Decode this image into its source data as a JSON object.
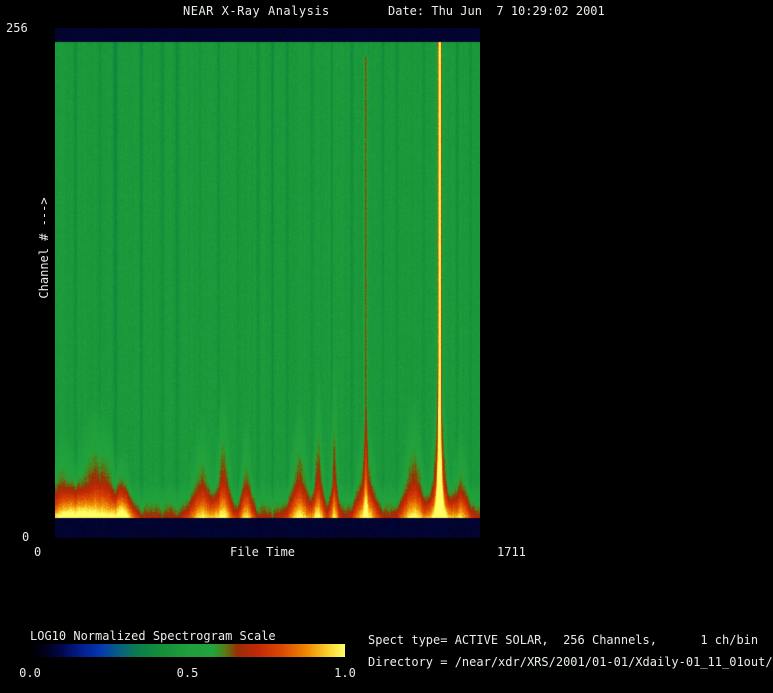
{
  "header": {
    "title": "NEAR X-Ray Analysis",
    "date_label": "Date: Thu Jun  7 10:29:02 2001"
  },
  "axes": {
    "y_max": "256",
    "y_min": "0",
    "y_label": "Channel # --->",
    "x_min": "0",
    "x_max": "1711",
    "x_label": "File Time"
  },
  "colorbar": {
    "label": "LOG10 Normalized Spectrogram Scale",
    "ticks": [
      "0.0",
      "0.5",
      "1.0"
    ]
  },
  "footer": {
    "line1": "Spect type= ACTIVE SOLAR,  256 Channels,      1 ch/bin",
    "line2": "Directory = /near/xdr/XRS/2001/01-01/Xdaily-01_11_01out/"
  },
  "chart_data": {
    "type": "heatmap",
    "subtype": "spectrogram",
    "title": "NEAR X-Ray Analysis",
    "xlabel": "File Time",
    "ylabel": "Channel #",
    "x_range": [
      0,
      1711
    ],
    "y_range": [
      0,
      256
    ],
    "scale_label": "LOG10 Normalized Spectrogram Scale",
    "scale_range": [
      0.0,
      1.0
    ],
    "legend_position": "bottom-left",
    "grid": false,
    "colormap": [
      [
        0.0,
        "#000002"
      ],
      [
        0.05,
        "#02021e"
      ],
      [
        0.1,
        "#03084e"
      ],
      [
        0.16,
        "#041f8e"
      ],
      [
        0.22,
        "#0536b0"
      ],
      [
        0.28,
        "#075f86"
      ],
      [
        0.34,
        "#0c7e4e"
      ],
      [
        0.42,
        "#169038"
      ],
      [
        0.5,
        "#1f9f3e"
      ],
      [
        0.58,
        "#23a43c"
      ],
      [
        0.62,
        "#577c14"
      ],
      [
        0.66,
        "#9c2e06"
      ],
      [
        0.72,
        "#c22806"
      ],
      [
        0.8,
        "#db4a04"
      ],
      [
        0.88,
        "#ef8903"
      ],
      [
        0.95,
        "#fbd530"
      ],
      [
        1.0,
        "#ffff66"
      ]
    ],
    "background_level": 0.47,
    "band_level": 0.07,
    "pixel_noise": 0.05,
    "column_noise": 0.03,
    "bands": {
      "top_end": 0.0275,
      "bottom_start": 0.9608
    },
    "flares": [
      {
        "x": 0.5,
        "w": 10.0,
        "h": 0.08,
        "amp": 0.22
      },
      {
        "x": 0.02,
        "w": 0.05,
        "h": 0.2,
        "amp": 0.3
      },
      {
        "x": 0.1,
        "w": 0.065,
        "h": 0.26,
        "amp": 0.37
      },
      {
        "x": 0.16,
        "w": 0.025,
        "h": 0.16,
        "amp": 0.26
      },
      {
        "x": 0.345,
        "w": 0.03,
        "h": 0.24,
        "amp": 0.31
      },
      {
        "x": 0.395,
        "w": 0.022,
        "h": 0.3,
        "amp": 0.35
      },
      {
        "x": 0.45,
        "w": 0.018,
        "h": 0.24,
        "amp": 0.3
      },
      {
        "x": 0.575,
        "w": 0.028,
        "h": 0.26,
        "amp": 0.33
      },
      {
        "x": 0.62,
        "w": 0.016,
        "h": 0.32,
        "amp": 0.33
      },
      {
        "x": 0.657,
        "w": 0.011,
        "h": 0.38,
        "amp": 0.31
      },
      {
        "x": 0.732,
        "w": 0.028,
        "h": 0.26,
        "amp": 0.34
      },
      {
        "x": 0.845,
        "w": 0.032,
        "h": 0.27,
        "amp": 0.34
      },
      {
        "x": 0.906,
        "w": 0.024,
        "h": 0.34,
        "amp": 0.42
      },
      {
        "x": 0.906,
        "w": 0.009,
        "h": 0.28,
        "amp": 0.5
      },
      {
        "x": 0.955,
        "w": 0.025,
        "h": 0.2,
        "amp": 0.28
      }
    ],
    "lines": [
      {
        "x": 0.732,
        "w": 0.0045,
        "amp": 0.165,
        "h": 0.97
      },
      {
        "x": 0.906,
        "w": 0.0035,
        "amp": 0.62,
        "h": 1.0
      },
      {
        "x": 0.906,
        "w": 0.008,
        "amp": 0.08,
        "h": 1.0
      }
    ],
    "dark_streaks": [
      {
        "x": 0.047,
        "w": 0.004,
        "s": 0.07
      },
      {
        "x": 0.106,
        "w": 0.004,
        "s": 0.05
      },
      {
        "x": 0.141,
        "w": 0.005,
        "s": 0.11
      },
      {
        "x": 0.202,
        "w": 0.004,
        "s": 0.09
      },
      {
        "x": 0.252,
        "w": 0.004,
        "s": 0.07
      },
      {
        "x": 0.287,
        "w": 0.004,
        "s": 0.08
      },
      {
        "x": 0.341,
        "w": 0.003,
        "s": 0.05
      },
      {
        "x": 0.384,
        "w": 0.004,
        "s": 0.06
      },
      {
        "x": 0.431,
        "w": 0.003,
        "s": 0.05
      },
      {
        "x": 0.478,
        "w": 0.004,
        "s": 0.06
      },
      {
        "x": 0.511,
        "w": 0.004,
        "s": 0.08
      },
      {
        "x": 0.546,
        "w": 0.004,
        "s": 0.07
      },
      {
        "x": 0.605,
        "w": 0.004,
        "s": 0.06
      },
      {
        "x": 0.652,
        "w": 0.003,
        "s": 0.05
      },
      {
        "x": 0.699,
        "w": 0.004,
        "s": 0.07
      },
      {
        "x": 0.772,
        "w": 0.004,
        "s": 0.08
      },
      {
        "x": 0.805,
        "w": 0.004,
        "s": 0.06
      },
      {
        "x": 0.868,
        "w": 0.003,
        "s": 0.05
      },
      {
        "x": 0.948,
        "w": 0.004,
        "s": 0.07
      },
      {
        "x": 0.979,
        "w": 0.004,
        "s": 0.06
      }
    ]
  }
}
